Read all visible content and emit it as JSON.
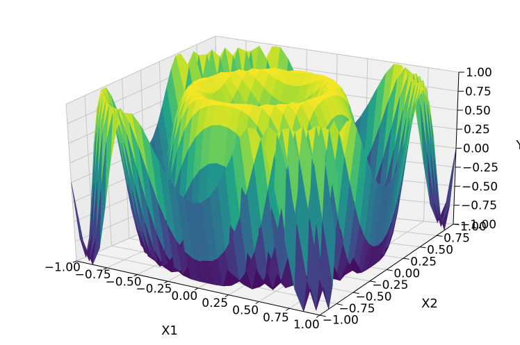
{
  "chart_data": {
    "type": "surface",
    "function": "sin(2*pi*(x1^2 + x2^2))",
    "colormap": "viridis",
    "grid": true,
    "view": {
      "elevation_deg": 30,
      "azimuth_deg": -60
    },
    "x1": {
      "label": "X1",
      "range": [
        -1.0,
        1.0
      ],
      "ticks": [
        -1.0,
        -0.75,
        -0.5,
        -0.25,
        0.0,
        0.25,
        0.5,
        0.75,
        1.0
      ],
      "tick_labels": [
        "−1.00",
        "−0.75",
        "−0.50",
        "−0.25",
        "0.00",
        "0.25",
        "0.50",
        "0.75",
        "1.00"
      ]
    },
    "x2": {
      "label": "X2",
      "range": [
        -1.0,
        1.0
      ],
      "ticks": [
        -1.0,
        -0.75,
        -0.5,
        -0.25,
        0.0,
        0.25,
        0.5,
        0.75,
        1.0
      ],
      "tick_labels": [
        "−1.00",
        "−0.75",
        "−0.50",
        "−0.25",
        "0.00",
        "0.25",
        "0.50",
        "0.75",
        "1.00"
      ]
    },
    "y": {
      "label": "Y",
      "range": [
        -1.0,
        1.0
      ],
      "ticks": [
        -1.0,
        -0.75,
        -0.5,
        -0.25,
        0.0,
        0.25,
        0.5,
        0.75,
        1.0
      ],
      "tick_labels": [
        "−1.00",
        "−0.75",
        "−0.50",
        "−0.25",
        "0.00",
        "0.25",
        "0.50",
        "0.75",
        "1.00"
      ]
    }
  }
}
